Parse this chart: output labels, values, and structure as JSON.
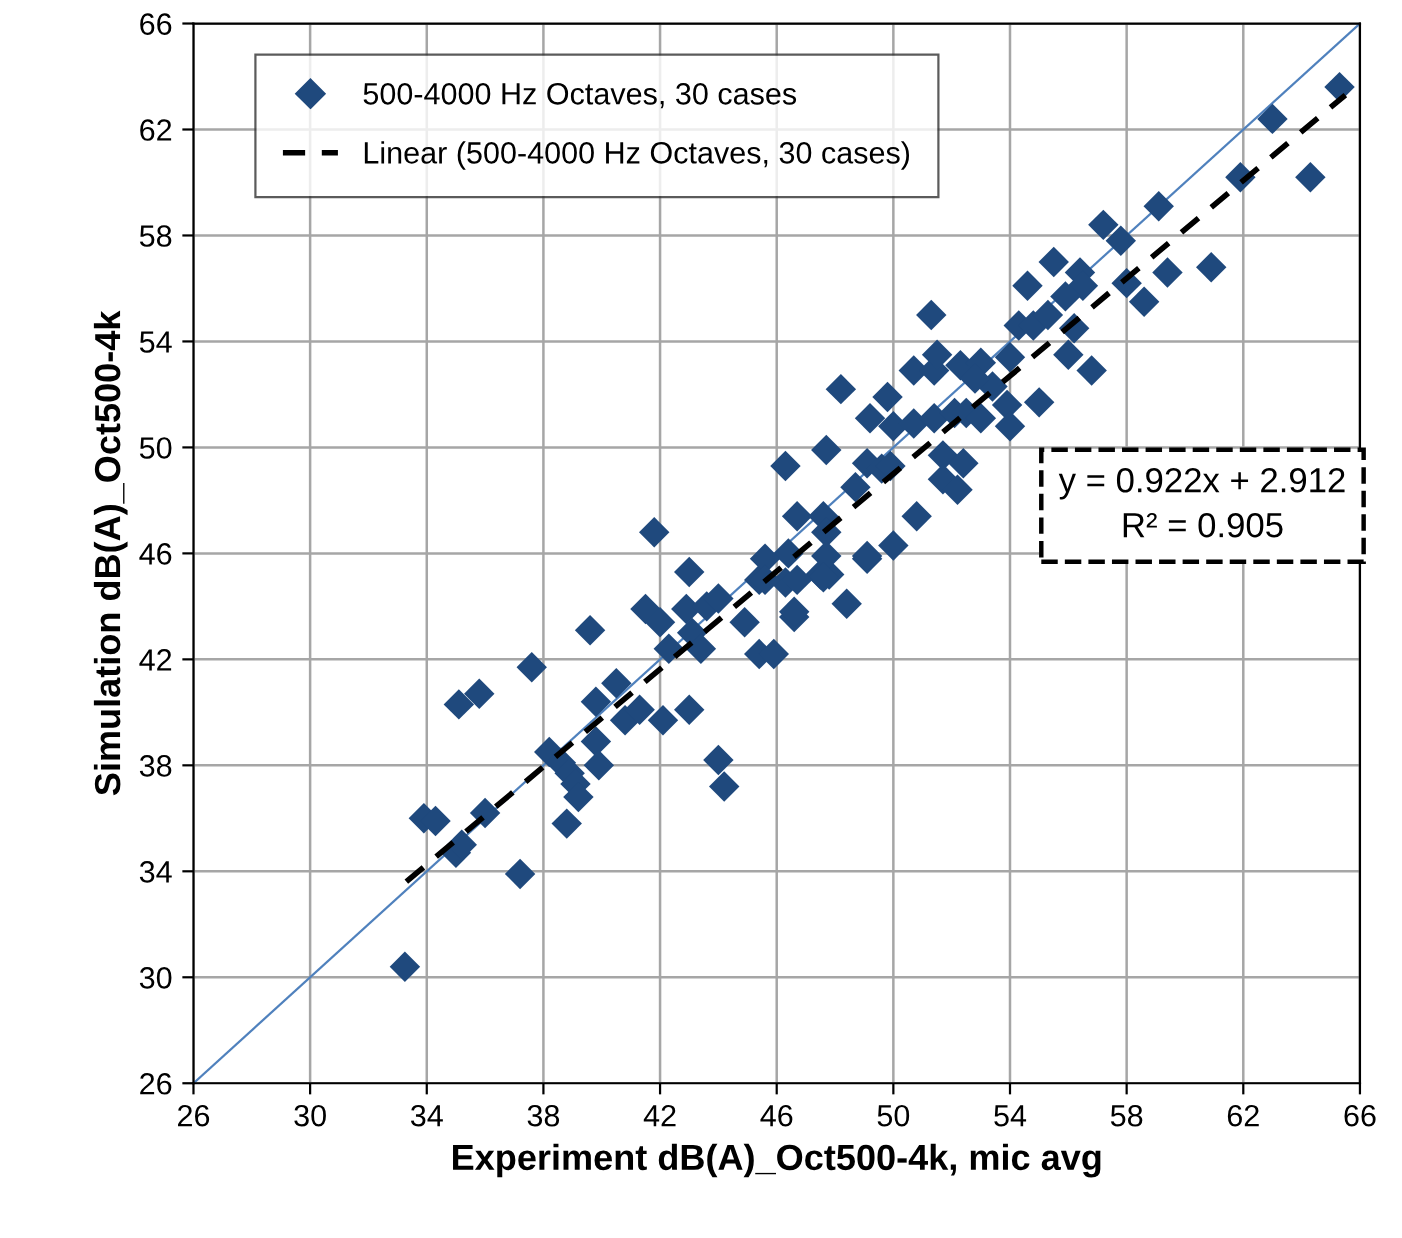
{
  "chart_data": {
    "type": "scatter",
    "xlabel": "Experiment dB(A)_Oct500-4k, mic avg",
    "ylabel": "Simulation dB(A)_Oct500-4k",
    "xlim": [
      26,
      66
    ],
    "ylim": [
      26,
      66
    ],
    "xticks": [
      26,
      30,
      34,
      38,
      42,
      46,
      50,
      54,
      58,
      62,
      66
    ],
    "yticks": [
      26,
      30,
      34,
      38,
      42,
      46,
      50,
      54,
      58,
      62,
      66
    ],
    "grid": true,
    "legend": "top left",
    "marker": "diamond",
    "annotations": [
      "y = 0.922x + 2.912",
      "R² = 0.905"
    ],
    "series": [
      {
        "type": "line",
        "color": "#4f81bd",
        "line_style": "solid",
        "marker": "none",
        "x": [
          26,
          66
        ],
        "values": [
          26,
          66
        ]
      },
      {
        "name": "500-4000 Hz Octaves, 30 cases",
        "color": "#1f497d",
        "x": [
          33.25,
          33.9,
          34.3,
          35.0,
          35.2,
          36.0,
          37.2,
          35.1,
          35.8,
          37.6,
          39.6,
          38.2,
          38.6,
          38.9,
          39.1,
          39.2,
          38.8,
          39.8,
          39.9,
          39.8,
          40.5,
          40.8,
          41.3,
          42.1,
          43.0,
          44.0,
          44.2,
          41.5,
          42.0,
          42.9,
          43.1,
          43.4,
          42.3,
          44.9,
          45.4,
          45.9,
          46.6,
          48.4,
          43.0,
          43.6,
          44.0,
          45.4,
          46.3,
          47.5,
          47.8,
          49.1,
          41.8,
          56.8,
          48.2,
          49.8,
          50.7,
          51.4,
          52.3,
          49.2,
          50.0,
          50.7,
          51.4,
          52.1,
          52.5,
          53.0,
          53.4,
          53.9,
          54.0,
          55.0,
          46.3,
          47.7,
          49.1,
          49.6,
          49.9,
          48.7,
          51.7,
          52.4,
          51.7,
          52.2,
          50.8,
          46.7,
          47.6,
          47.7,
          50.0,
          49.1,
          46.4,
          47.7,
          47.6,
          46.7,
          46.6,
          45.6,
          45.6,
          65.3,
          63.0,
          61.9,
          64.3,
          59.1,
          57.2,
          57.8,
          55.5,
          54.6,
          56.4,
          56.5,
          55.9,
          58.0,
          58.6,
          59.4,
          60.9,
          54.3,
          54.8,
          55.3,
          56.2,
          51.3,
          51.5,
          53.0,
          52.8,
          54.0,
          56.0
        ],
        "values": [
          30.4,
          36.0,
          35.9,
          34.7,
          35.0,
          36.2,
          33.9,
          40.3,
          40.7,
          41.7,
          43.1,
          38.5,
          38.1,
          37.7,
          37.3,
          36.8,
          35.8,
          38.9,
          38.0,
          40.4,
          41.1,
          39.7,
          40.1,
          39.7,
          40.1,
          38.2,
          37.2,
          43.9,
          43.4,
          43.9,
          43.0,
          42.4,
          42.4,
          43.4,
          42.2,
          42.2,
          43.6,
          44.1,
          45.3,
          44.0,
          44.3,
          45.0,
          44.9,
          45.2,
          45.2,
          45.8,
          46.8,
          52.9,
          52.2,
          51.9,
          52.9,
          52.9,
          53.1,
          51.1,
          50.8,
          50.9,
          51.1,
          51.3,
          51.3,
          51.1,
          52.3,
          51.6,
          50.8,
          51.7,
          49.3,
          49.9,
          49.4,
          49.2,
          49.3,
          48.5,
          49.7,
          49.4,
          48.8,
          48.4,
          47.4,
          47.4,
          47.4,
          46.8,
          46.3,
          45.9,
          46.0,
          45.9,
          45.1,
          45.0,
          43.8,
          45.8,
          45.0,
          63.6,
          62.4,
          60.2,
          60.2,
          59.1,
          58.4,
          57.8,
          57.0,
          56.1,
          56.6,
          56.1,
          55.7,
          56.2,
          55.5,
          56.6,
          56.8,
          54.6,
          54.6,
          55.0,
          54.5,
          55.0,
          53.5,
          53.2,
          52.6,
          53.4,
          53.5
        ]
      },
      {
        "type": "line",
        "name": "Linear (500-4000 Hz Octaves, 30 cases)",
        "color": "#000000",
        "line_style": "dashed",
        "marker": "none",
        "x": [
          33.3,
          65.5
        ],
        "values": [
          33.61,
          63.3
        ]
      }
    ]
  }
}
